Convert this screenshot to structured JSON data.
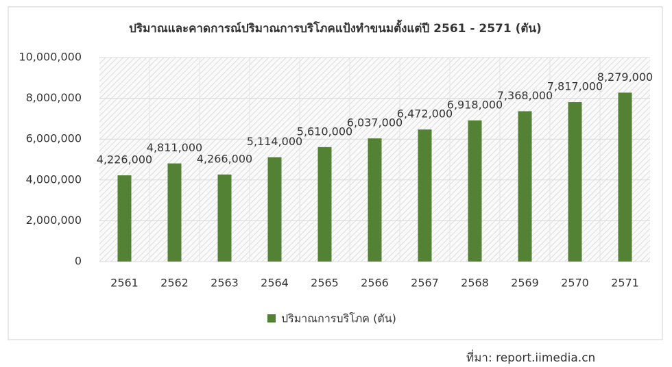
{
  "chart_data": {
    "type": "bar",
    "title": "ปริมาณและคาดการณ์ปริมาณการบริโภคแป้งทำขนมตั้งแต่ปี 2561 - 2571 (ตัน)",
    "categories": [
      "2561",
      "2562",
      "2563",
      "2564",
      "2565",
      "2566",
      "2567",
      "2568",
      "2569",
      "2570",
      "2571"
    ],
    "series": [
      {
        "name": "ปริมาณการบริโภค (ตัน)",
        "color": "#548235",
        "values": [
          4226000,
          4811000,
          4266000,
          5114000,
          5610000,
          6037000,
          6472000,
          6918000,
          7368000,
          7817000,
          8279000
        ],
        "value_labels": [
          "4,226,000",
          "4,811,000",
          "4,266,000",
          "5,114,000",
          "5,610,000",
          "6,037,000",
          "6,472,000",
          "6,918,000",
          "7,368,000",
          "7,817,000",
          "8,279,000"
        ]
      }
    ],
    "ylim": [
      0,
      10000000
    ],
    "yticks": [
      0,
      {
        "value": 2000000,
        "label": "2,000,000"
      },
      {
        "value": 4000000,
        "label": "4,000,000"
      },
      {
        "value": 6000000,
        "label": "6,000,000"
      },
      {
        "value": 8000000,
        "label": "8,000,000"
      },
      {
        "value": 10000000,
        "label": "10,000,000"
      }
    ],
    "grid": true,
    "legend": "bottom",
    "source": "ที่มา: report.iimedia.cn"
  }
}
